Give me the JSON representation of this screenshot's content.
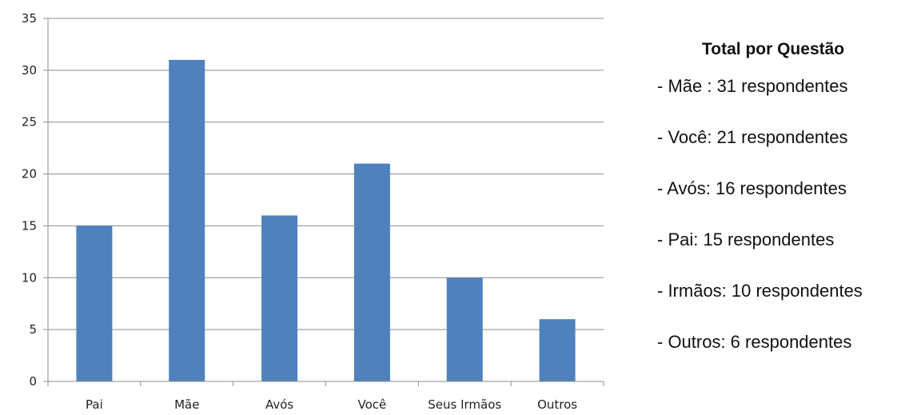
{
  "chart_data": {
    "type": "bar",
    "categories": [
      "Pai",
      "Mãe",
      "Avós",
      "Você",
      "Seus Irmãos",
      "Outros"
    ],
    "values": [
      15,
      31,
      16,
      21,
      10,
      6
    ],
    "ylim": [
      0,
      35
    ],
    "yticks": [
      0,
      5,
      10,
      15,
      20,
      25,
      30,
      35
    ],
    "grid": true,
    "bar_color": "#4F81BD",
    "title": "",
    "xlabel": "",
    "ylabel": ""
  },
  "summary": {
    "title": "Total por Questão",
    "items": [
      "- Mãe : 31 respondentes",
      "- Você: 21 respondentes",
      "- Avós: 16 respondentes",
      "- Pai: 15 respondentes",
      "- Irmãos: 10 respondentes",
      "- Outros: 6 respondentes"
    ]
  }
}
